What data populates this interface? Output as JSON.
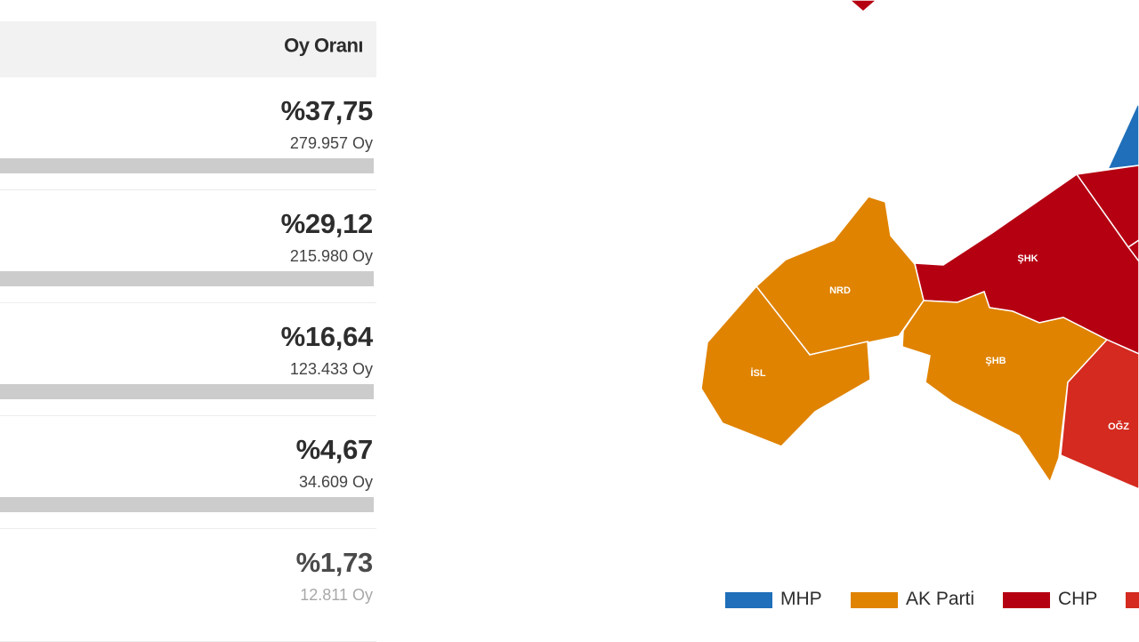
{
  "table": {
    "header": "Oy Oranı",
    "rows": [
      {
        "percent": "%37,75",
        "votes": "279.957 Oy"
      },
      {
        "percent": "%29,12",
        "votes": "215.980 Oy"
      },
      {
        "percent": "%16,64",
        "votes": "123.433 Oy"
      },
      {
        "percent": "%4,67",
        "votes": "34.609 Oy"
      },
      {
        "percent": "%1,73",
        "votes": "12.811 Oy"
      }
    ]
  },
  "map": {
    "districts": [
      {
        "label": "NRD",
        "color": "#e08300"
      },
      {
        "label": "İSL",
        "color": "#e08300"
      },
      {
        "label": "ŞHB",
        "color": "#e08300"
      },
      {
        "label": "ŞHK",
        "color": "#b50012"
      },
      {
        "label": "OĞZ",
        "color": "#d42a1f"
      }
    ]
  },
  "legend": {
    "items": [
      {
        "label": "MHP",
        "color": "#1f6fba"
      },
      {
        "label": "AK Parti",
        "color": "#e08300"
      },
      {
        "label": "CHP",
        "color": "#b50012"
      },
      {
        "label": "",
        "color": "#d42a1f"
      }
    ]
  }
}
